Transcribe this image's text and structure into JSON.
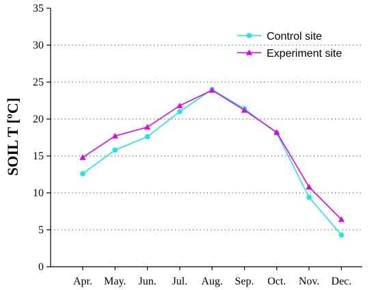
{
  "chart_data": {
    "type": "line",
    "title": "",
    "xlabel": "",
    "ylabel": "SOIL T [ºC]",
    "categories": [
      "Apr.",
      "May.",
      "Jun.",
      "Jul.",
      "Aug.",
      "Sep.",
      "Oct.",
      "Nov.",
      "Dec."
    ],
    "ylim": [
      0,
      35
    ],
    "yticks": [
      0,
      5,
      10,
      15,
      20,
      25,
      30,
      35
    ],
    "grid": "horizontal-dotted",
    "legend_position": "top-right",
    "series": [
      {
        "name": "Control site",
        "marker": "circle",
        "color": "#1de6e6",
        "values": [
          12.6,
          15.8,
          17.6,
          21.0,
          24.0,
          21.4,
          18.1,
          9.4,
          4.3
        ]
      },
      {
        "name": "Experiment site",
        "marker": "triangle",
        "color": "#e600e6",
        "values": [
          14.8,
          17.7,
          18.9,
          21.8,
          23.9,
          21.2,
          18.2,
          10.8,
          6.4
        ]
      }
    ]
  }
}
